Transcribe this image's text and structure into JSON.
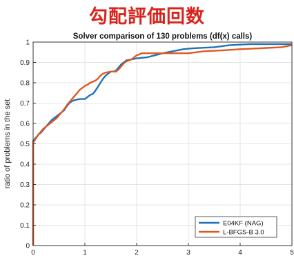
{
  "banner": "勾配評価回数",
  "chart_data": {
    "type": "line",
    "title": "Solver comparison of 130 problems (df(x) calls)",
    "xlabel": "",
    "ylabel": "ratio of problems in the set",
    "xlim": [
      0,
      5
    ],
    "ylim": [
      0,
      1
    ],
    "xticks": [
      "0",
      "1",
      "2",
      "3",
      "4",
      "5"
    ],
    "yticks": [
      "0",
      "0.1",
      "0.2",
      "0.3",
      "0.4",
      "0.5",
      "0.6",
      "0.7",
      "0.8",
      "0.9",
      "1"
    ],
    "grid": true,
    "legend_position": "bottom-right",
    "series": [
      {
        "name": "E04KF (NAG)",
        "color": "#1f72b8",
        "points": [
          [
            0,
            0
          ],
          [
            0,
            0.515
          ],
          [
            0.05,
            0.53
          ],
          [
            0.1,
            0.545
          ],
          [
            0.15,
            0.555
          ],
          [
            0.2,
            0.57
          ],
          [
            0.25,
            0.585
          ],
          [
            0.3,
            0.6
          ],
          [
            0.35,
            0.615
          ],
          [
            0.4,
            0.625
          ],
          [
            0.45,
            0.635
          ],
          [
            0.5,
            0.645
          ],
          [
            0.55,
            0.655
          ],
          [
            0.6,
            0.665
          ],
          [
            0.65,
            0.685
          ],
          [
            0.7,
            0.7
          ],
          [
            0.75,
            0.71
          ],
          [
            0.8,
            0.715
          ],
          [
            0.9,
            0.72
          ],
          [
            1.0,
            0.72
          ],
          [
            1.05,
            0.73
          ],
          [
            1.1,
            0.74
          ],
          [
            1.15,
            0.745
          ],
          [
            1.2,
            0.76
          ],
          [
            1.25,
            0.78
          ],
          [
            1.3,
            0.8
          ],
          [
            1.35,
            0.82
          ],
          [
            1.4,
            0.835
          ],
          [
            1.45,
            0.845
          ],
          [
            1.5,
            0.855
          ],
          [
            1.55,
            0.855
          ],
          [
            1.6,
            0.86
          ],
          [
            1.65,
            0.875
          ],
          [
            1.7,
            0.89
          ],
          [
            1.75,
            0.9
          ],
          [
            1.8,
            0.91
          ],
          [
            1.9,
            0.915
          ],
          [
            2.0,
            0.92
          ],
          [
            2.2,
            0.925
          ],
          [
            2.35,
            0.935
          ],
          [
            2.5,
            0.945
          ],
          [
            2.7,
            0.955
          ],
          [
            2.9,
            0.965
          ],
          [
            3.1,
            0.97
          ],
          [
            3.5,
            0.975
          ],
          [
            3.8,
            0.985
          ],
          [
            4.2,
            0.99
          ],
          [
            5.0,
            0.99
          ]
        ]
      },
      {
        "name": "L-BFGS-B 3.0",
        "color": "#e0581f",
        "points": [
          [
            0,
            0
          ],
          [
            0,
            0.505
          ],
          [
            0.05,
            0.525
          ],
          [
            0.1,
            0.545
          ],
          [
            0.15,
            0.56
          ],
          [
            0.2,
            0.575
          ],
          [
            0.25,
            0.585
          ],
          [
            0.3,
            0.595
          ],
          [
            0.35,
            0.605
          ],
          [
            0.4,
            0.615
          ],
          [
            0.45,
            0.625
          ],
          [
            0.5,
            0.64
          ],
          [
            0.55,
            0.655
          ],
          [
            0.6,
            0.67
          ],
          [
            0.65,
            0.69
          ],
          [
            0.7,
            0.705
          ],
          [
            0.75,
            0.72
          ],
          [
            0.8,
            0.735
          ],
          [
            0.85,
            0.75
          ],
          [
            0.9,
            0.765
          ],
          [
            0.95,
            0.775
          ],
          [
            1.0,
            0.785
          ],
          [
            1.05,
            0.79
          ],
          [
            1.1,
            0.8
          ],
          [
            1.15,
            0.805
          ],
          [
            1.2,
            0.81
          ],
          [
            1.25,
            0.82
          ],
          [
            1.3,
            0.835
          ],
          [
            1.35,
            0.845
          ],
          [
            1.4,
            0.85
          ],
          [
            1.5,
            0.855
          ],
          [
            1.6,
            0.855
          ],
          [
            1.65,
            0.865
          ],
          [
            1.7,
            0.88
          ],
          [
            1.75,
            0.895
          ],
          [
            1.8,
            0.905
          ],
          [
            1.85,
            0.91
          ],
          [
            1.9,
            0.915
          ],
          [
            2.0,
            0.935
          ],
          [
            2.1,
            0.945
          ],
          [
            2.5,
            0.945
          ],
          [
            3.0,
            0.945
          ],
          [
            3.3,
            0.955
          ],
          [
            3.7,
            0.96
          ],
          [
            4.0,
            0.965
          ],
          [
            4.4,
            0.97
          ],
          [
            4.8,
            0.975
          ],
          [
            5.0,
            0.985
          ]
        ]
      }
    ]
  }
}
